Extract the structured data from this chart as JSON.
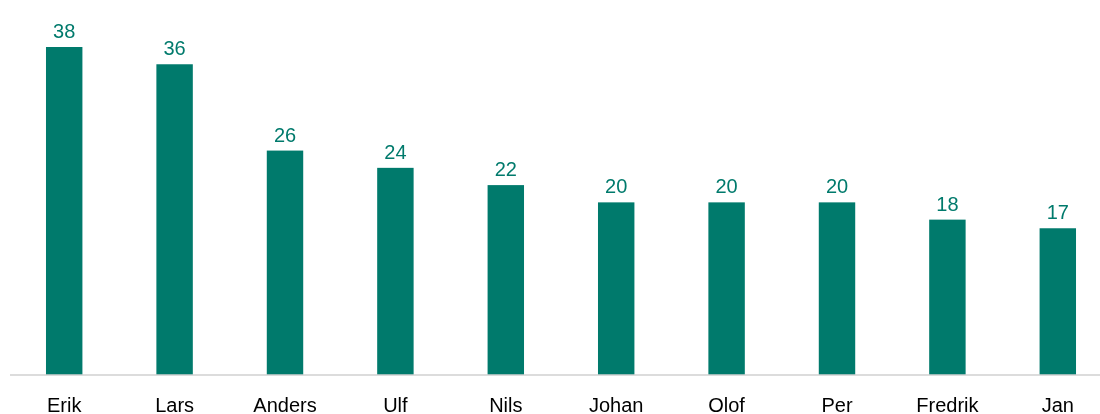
{
  "chart_data": {
    "type": "bar",
    "categories": [
      "Erik",
      "Lars",
      "Anders",
      "Ulf",
      "Nils",
      "Johan",
      "Olof",
      "Per",
      "Fredrik",
      "Jan"
    ],
    "values": [
      38,
      36,
      26,
      24,
      22,
      20,
      20,
      20,
      18,
      17
    ],
    "color": "#007a6c",
    "data_labels": true
  }
}
